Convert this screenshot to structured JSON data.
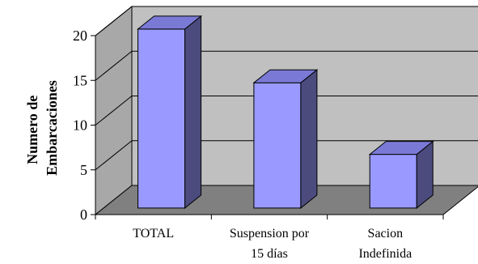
{
  "chart_data": {
    "type": "bar",
    "categories": [
      [
        "TOTAL"
      ],
      [
        "Suspension por",
        "15 días"
      ],
      [
        "Sacion",
        "Indefinida"
      ]
    ],
    "values": [
      20,
      14,
      6
    ],
    "title": "",
    "xlabel": "",
    "ylabel_lines": [
      "Numero de",
      "Embarcaciones"
    ],
    "ylim": [
      0,
      20
    ],
    "yticks": [
      "0",
      "5",
      "10",
      "15",
      "20"
    ],
    "grid": true,
    "colors": {
      "bar_front": "#9999ff",
      "bar_side": "#4b4b7e",
      "bar_top": "#7a7ad6",
      "wall": "#c0c0c0",
      "floor": "#808080",
      "side_wall": "#a8a8a8"
    }
  }
}
